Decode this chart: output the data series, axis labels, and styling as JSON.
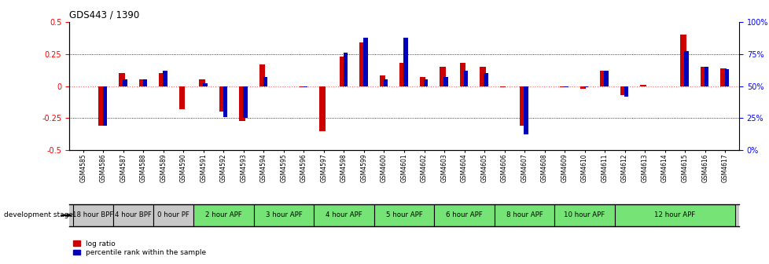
{
  "title": "GDS443 / 1390",
  "samples": [
    "GSM4585",
    "GSM4586",
    "GSM4587",
    "GSM4588",
    "GSM4589",
    "GSM4590",
    "GSM4591",
    "GSM4592",
    "GSM4593",
    "GSM4594",
    "GSM4595",
    "GSM4596",
    "GSM4597",
    "GSM4598",
    "GSM4599",
    "GSM4600",
    "GSM4601",
    "GSM4602",
    "GSM4603",
    "GSM4604",
    "GSM4605",
    "GSM4606",
    "GSM4607",
    "GSM4608",
    "GSM4609",
    "GSM4610",
    "GSM4611",
    "GSM4612",
    "GSM4613",
    "GSM4614",
    "GSM4615",
    "GSM4616",
    "GSM4617"
  ],
  "log_ratio": [
    0.0,
    -0.31,
    0.1,
    0.05,
    0.1,
    -0.18,
    0.05,
    -0.2,
    -0.27,
    0.17,
    0.0,
    -0.01,
    -0.35,
    0.23,
    0.34,
    0.08,
    0.18,
    0.07,
    0.15,
    0.18,
    0.15,
    -0.01,
    -0.31,
    0.0,
    -0.01,
    -0.02,
    0.12,
    -0.07,
    0.01,
    0.0,
    0.4,
    0.15,
    0.14
  ],
  "percentile": [
    50,
    19,
    55,
    55,
    62,
    50,
    52,
    26,
    25,
    57,
    50,
    49,
    50,
    76,
    88,
    55,
    88,
    55,
    57,
    62,
    60,
    50,
    12,
    50,
    49,
    49,
    62,
    42,
    50,
    50,
    77,
    65,
    63
  ],
  "stages": [
    {
      "label": "18 hour BPF",
      "start": 0,
      "end": 2,
      "color": "#c8c8c8"
    },
    {
      "label": "4 hour BPF",
      "start": 2,
      "end": 4,
      "color": "#c8c8c8"
    },
    {
      "label": "0 hour PF",
      "start": 4,
      "end": 6,
      "color": "#c8c8c8"
    },
    {
      "label": "2 hour APF",
      "start": 6,
      "end": 9,
      "color": "#76e376"
    },
    {
      "label": "3 hour APF",
      "start": 9,
      "end": 12,
      "color": "#76e376"
    },
    {
      "label": "4 hour APF",
      "start": 12,
      "end": 15,
      "color": "#76e376"
    },
    {
      "label": "5 hour APF",
      "start": 15,
      "end": 18,
      "color": "#76e376"
    },
    {
      "label": "6 hour APF",
      "start": 18,
      "end": 21,
      "color": "#76e376"
    },
    {
      "label": "8 hour APF",
      "start": 21,
      "end": 24,
      "color": "#76e376"
    },
    {
      "label": "10 hour APF",
      "start": 24,
      "end": 27,
      "color": "#76e376"
    },
    {
      "label": "12 hour APF",
      "start": 27,
      "end": 33,
      "color": "#76e376"
    }
  ],
  "ylim": [
    -0.5,
    0.5
  ],
  "y2lim": [
    0,
    100
  ],
  "yticks_left": [
    -0.5,
    -0.25,
    0.0,
    0.25,
    0.5
  ],
  "yticks_right": [
    0,
    25,
    50,
    75,
    100
  ],
  "ytick_labels_left": [
    "-0.5",
    "-0.25",
    "0",
    "0.25",
    "0.5"
  ],
  "ytick_labels_right": [
    "0%",
    "25%",
    "50%",
    "75%",
    "100%"
  ],
  "dotted_lines": [
    -0.25,
    0.25
  ],
  "zero_line_color": "#ff6666",
  "bar_color": "#cc0000",
  "percentile_color": "#0000bb",
  "background_color": "#ffffff",
  "dev_stage_label": "development stage",
  "legend_items": [
    "log ratio",
    "percentile rank within the sample"
  ]
}
